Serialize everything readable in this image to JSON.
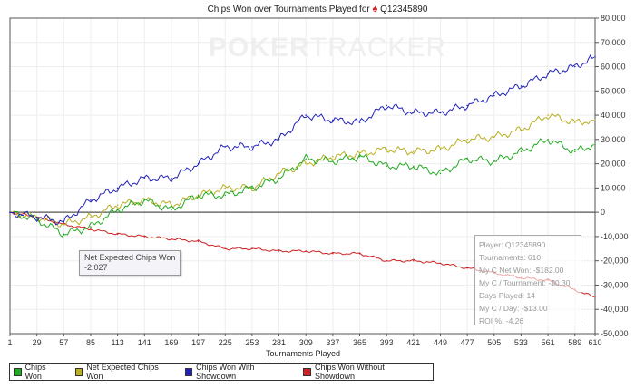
{
  "title": {
    "text": "Chips Won over Tournaments Played for",
    "player": "Q12345890",
    "icon": "spade-icon"
  },
  "watermark": {
    "bold": "POKER",
    "light": "TRACKER"
  },
  "tooltip": {
    "series": "Net Expected Chips Won",
    "value": "-2,027"
  },
  "stats": [
    "Player: Q12345890",
    "Tournaments: 610",
    "My C Net Won: -$182.00",
    "My C / Tournament: -$0.30",
    "Days Played: 14",
    "My C / Day: -$13.00",
    "ROI %: -4.26"
  ],
  "chart_data": {
    "type": "line",
    "title": "Chips Won over Tournaments Played for Q12345890",
    "xlabel": "Tournaments Played",
    "ylabel": "",
    "xlim": [
      1,
      610
    ],
    "ylim": [
      -50000,
      80000
    ],
    "grid": true,
    "legend_placement": "bottom",
    "x_ticks": [
      "1",
      "29",
      "57",
      "85",
      "113",
      "141",
      "169",
      "197",
      "225",
      "253",
      "281",
      "309",
      "337",
      "365",
      "393",
      "421",
      "449",
      "477",
      "505",
      "533",
      "561",
      "589",
      "610"
    ],
    "y_ticks": [
      "80,000",
      "70,000",
      "60,000",
      "50,000",
      "40,000",
      "30,000",
      "20,000",
      "10,000",
      "0",
      "-10,000",
      "-20,000",
      "-30,000",
      "-40,000",
      "-50,000"
    ],
    "x": [
      1,
      29,
      57,
      85,
      113,
      141,
      169,
      197,
      225,
      253,
      281,
      309,
      337,
      365,
      393,
      421,
      449,
      477,
      505,
      533,
      561,
      589,
      610
    ],
    "series": [
      {
        "name": "Chips Won",
        "color": "#22aa22",
        "values": [
          0,
          -3000,
          -9000,
          -6000,
          1000,
          5000,
          1000,
          7000,
          7000,
          10000,
          14000,
          22000,
          21000,
          23000,
          19000,
          19000,
          16000,
          22000,
          21000,
          25000,
          30000,
          25000,
          28000
        ]
      },
      {
        "name": "Net Expected Chips Won",
        "color": "#b8b020",
        "values": [
          0,
          -2000,
          -5000,
          -2000,
          3000,
          5000,
          3000,
          7000,
          10000,
          10000,
          16000,
          20000,
          23000,
          24000,
          26000,
          25000,
          26000,
          30000,
          31000,
          34000,
          40000,
          37000,
          38000
        ]
      },
      {
        "name": "Chips Won With Showdown",
        "color": "#2222bb",
        "values": [
          0,
          -2000,
          -4000,
          5000,
          10000,
          14000,
          14000,
          20000,
          27000,
          27000,
          30000,
          40000,
          38000,
          37000,
          44000,
          41000,
          41000,
          44000,
          48000,
          52000,
          57000,
          60000,
          64000
        ]
      },
      {
        "name": "Chips Won Without Showdown",
        "color": "#cc2222",
        "values": [
          0,
          -2000,
          -5000,
          -7000,
          -9000,
          -10000,
          -11000,
          -12000,
          -15000,
          -15000,
          -16000,
          -16000,
          -17000,
          -17000,
          -20000,
          -20000,
          -21000,
          -23000,
          -25000,
          -27000,
          -28000,
          -32000,
          -35000
        ]
      }
    ]
  }
}
